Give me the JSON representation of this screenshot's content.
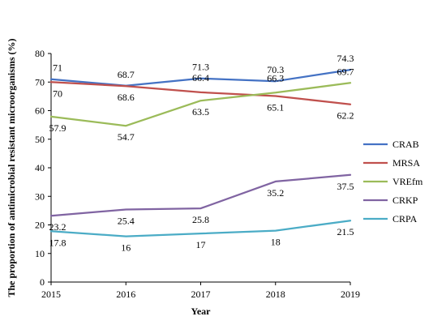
{
  "chart_data": {
    "type": "line",
    "title": "",
    "xlabel": "Year",
    "ylabel": "The proportion of antimicrobial resistant microorganisms (%)",
    "x": [
      "2015",
      "2016",
      "2017",
      "2018",
      "2019"
    ],
    "ylim": [
      0,
      80
    ],
    "yticks": [
      "0",
      "10",
      "20",
      "30",
      "40",
      "50",
      "60",
      "70",
      "80"
    ],
    "grid": false,
    "legend_position": "right",
    "series": [
      {
        "name": "CRAB",
        "color": "#4472C4",
        "values": [
          71,
          68.7,
          71.3,
          70.3,
          74.3
        ],
        "labels": [
          "71",
          "68.7",
          "71.3",
          "70.3",
          "74.3"
        ]
      },
      {
        "name": "MRSA",
        "color": "#C0504D",
        "values": [
          70,
          68.6,
          66.4,
          65.1,
          62.2
        ],
        "labels": [
          "70",
          "68.6",
          "66.4",
          "65.1",
          "62.2"
        ]
      },
      {
        "name": "VREfm",
        "color": "#9BBB59",
        "values": [
          57.9,
          54.7,
          63.5,
          66.3,
          69.7
        ],
        "labels": [
          "57.9",
          "54.7",
          "63.5",
          "66.3",
          "69.7"
        ]
      },
      {
        "name": "CRKP",
        "color": "#8064A2",
        "values": [
          23.2,
          25.4,
          25.8,
          35.2,
          37.5
        ],
        "labels": [
          "23.2",
          "25.4",
          "25.8",
          "35.2",
          "37.5"
        ]
      },
      {
        "name": "CRPA",
        "color": "#4BACC6",
        "values": [
          17.8,
          16,
          17,
          18,
          21.5
        ],
        "labels": [
          "17.8",
          "16",
          "17",
          "18",
          "21.5"
        ]
      }
    ]
  }
}
